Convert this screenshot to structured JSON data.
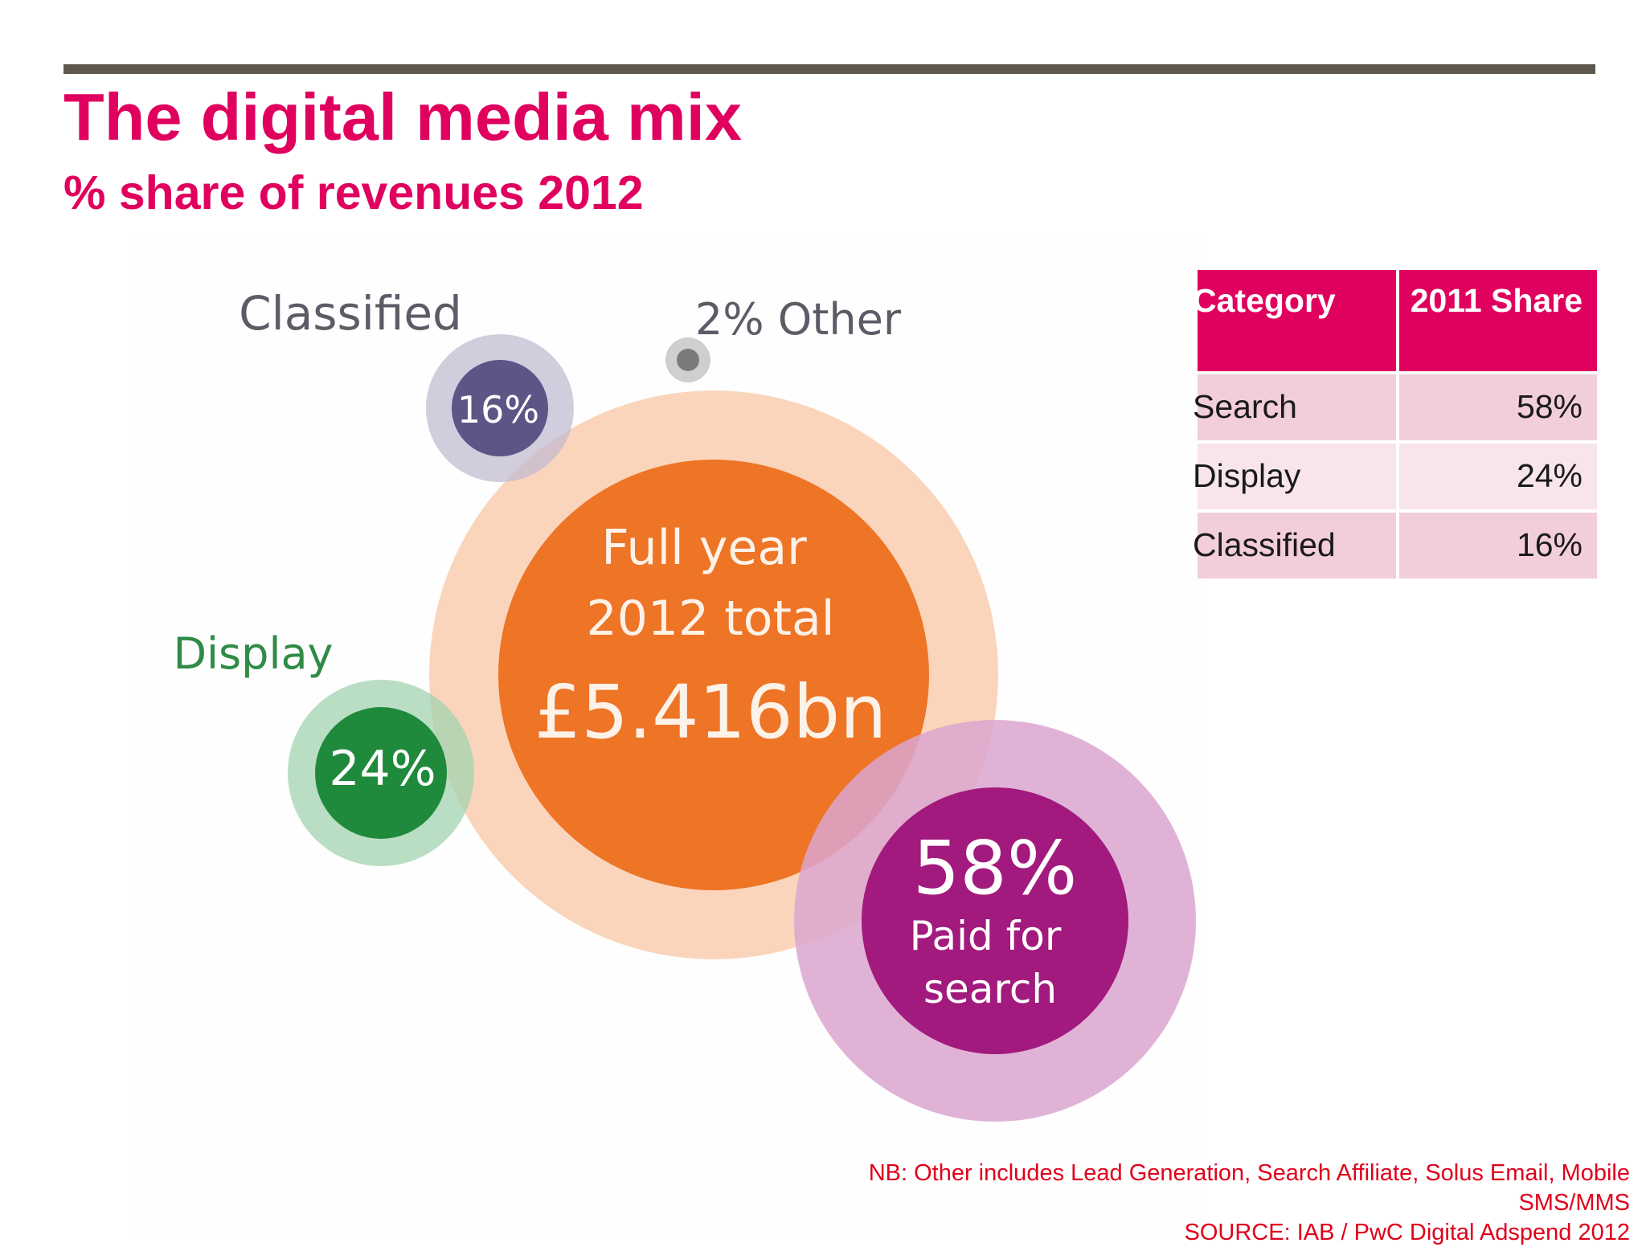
{
  "slide": {
    "title": "The digital media mix",
    "subtitle": "% share of revenues 2012"
  },
  "colors": {
    "accent": "#e0005e",
    "rule": "#5e574d",
    "note": "#e0001b"
  },
  "chart_data": [
    {
      "type": "pie",
      "style": "bubble",
      "center_label": {
        "line1": "Full year",
        "line2": "2012 total",
        "value": "£5.416bn"
      },
      "slices": [
        {
          "name": "Paid for search",
          "label_line1": "Paid for",
          "label_line2": "search",
          "value": 58,
          "value_label": "58%",
          "color_inner": "#a0157a",
          "color_outer": "#dba6cf"
        },
        {
          "name": "Display",
          "value": 24,
          "value_label": "24%",
          "color_inner": "#1f8a3b",
          "color_outer": "#a3d3b0"
        },
        {
          "name": "Classified",
          "value": 16,
          "value_label": "16%",
          "color_inner": "#5d5586",
          "color_outer": "#bfbad0"
        },
        {
          "name": "Other",
          "value": 2,
          "value_label": "2% Other",
          "color_inner": "#7b7b7b",
          "color_outer": "#cfcfcf"
        }
      ],
      "center_colors": {
        "inner": "#ee7426",
        "outer": "#f9c9a8"
      }
    },
    {
      "type": "table",
      "columns": [
        "Category",
        "2011 Share"
      ],
      "rows": [
        {
          "category": "Search",
          "share": "58%"
        },
        {
          "category": "Display",
          "share": "24%"
        },
        {
          "category": "Classified",
          "share": "16%"
        }
      ]
    }
  ],
  "footnotes": {
    "line1": "NB: Other includes Lead Generation, Search Affiliate, Solus Email, Mobile",
    "line2": "SMS/MMS",
    "line3": "SOURCE: IAB / PwC Digital Adspend 2012"
  }
}
